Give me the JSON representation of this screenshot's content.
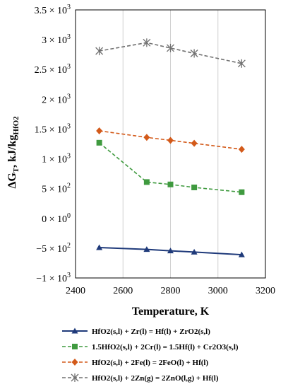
{
  "chart_data": {
    "type": "line",
    "xlabel": "Temperature, K",
    "ylabel": "ΔG_T, kJ/kg_HfO2",
    "xlim": [
      2400,
      3200
    ],
    "ylim": [
      -1000,
      3500
    ],
    "x_ticks": [
      {
        "value": 2400,
        "label": "2400"
      },
      {
        "value": 2600,
        "label": "2600"
      },
      {
        "value": 2800,
        "label": "2800"
      },
      {
        "value": 3000,
        "label": "3000"
      },
      {
        "value": 3200,
        "label": "3200"
      }
    ],
    "y_ticks": [
      {
        "value": 3500,
        "mant": "3.5 × 10",
        "exp": "3"
      },
      {
        "value": 3000,
        "mant": "3 × 10",
        "exp": "3"
      },
      {
        "value": 2500,
        "mant": "2.5 × 10",
        "exp": "3"
      },
      {
        "value": 2000,
        "mant": "2 × 10",
        "exp": "3"
      },
      {
        "value": 1500,
        "mant": "1.5 × 10",
        "exp": "3"
      },
      {
        "value": 1000,
        "mant": "1 × 10",
        "exp": "3"
      },
      {
        "value": 500,
        "mant": "5 × 10",
        "exp": "2"
      },
      {
        "value": 0,
        "mant": "0 × 10",
        "exp": "0"
      },
      {
        "value": -500,
        "mant": "−5 × 10",
        "exp": "2"
      },
      {
        "value": -1000,
        "mant": "−1 × 10",
        "exp": "3"
      }
    ],
    "grid": {
      "vertical": true,
      "horizontal": false
    },
    "legend_position": "bottom",
    "series": [
      {
        "name": "HfO2(s,l) + Zr(l) = Hf(l) + ZrO2(s,l)",
        "color": "#1f3a7a",
        "marker": "triangle",
        "dash": "solid",
        "x": [
          2500,
          2700,
          2800,
          2900,
          3100
        ],
        "y": [
          -490,
          -520,
          -545,
          -565,
          -610
        ]
      },
      {
        "name": "1.5HfO2(s,l) + 2Cr(l) = 1.5Hf(l) + Cr2O3(s,l)",
        "color": "#3f9a3f",
        "marker": "square",
        "dash": "dashed",
        "x": [
          2500,
          2700,
          2800,
          2900,
          3100
        ],
        "y": [
          1270,
          610,
          570,
          520,
          440
        ]
      },
      {
        "name": "HfO2(s,l) + 2Fe(l) = 2FeO(l) + Hf(l)",
        "color": "#d35a1a",
        "marker": "diamond",
        "dash": "dashed",
        "x": [
          2500,
          2700,
          2800,
          2900,
          3100
        ],
        "y": [
          1470,
          1360,
          1310,
          1260,
          1160
        ]
      },
      {
        "name": "HfO2(s,l) + 2Zn(g) = 2ZnO(l,g) + Hf(l)",
        "color": "#707070",
        "marker": "asterisk",
        "dash": "dashed",
        "x": [
          2500,
          2700,
          2800,
          2900,
          3100
        ],
        "y": [
          2810,
          2950,
          2860,
          2770,
          2600
        ]
      }
    ]
  }
}
